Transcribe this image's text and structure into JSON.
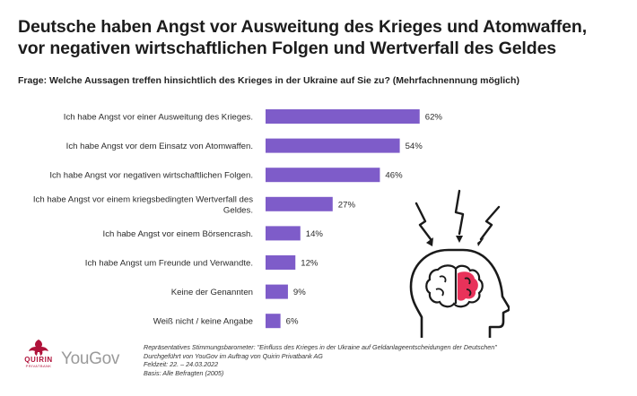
{
  "title_line1": "Deutsche haben Angst vor Ausweitung des Krieges und Atomwaffen,",
  "title_line2": "vor negativen wirtschaftlichen Folgen und Wertverfall des Geldes",
  "question": "Frage: Welche Aussagen treffen hinsichtlich des Krieges in der Ukraine auf Sie zu? (Mehrfachnennung möglich)",
  "colors": {
    "bar": "#7e5cc9",
    "accent": "#e8325a",
    "brand_quirin": "#b0123a"
  },
  "chart_data": {
    "type": "bar",
    "orientation": "horizontal",
    "categories": [
      [
        "Ich habe Angst vor einer Ausweitung des Krieges."
      ],
      [
        "Ich habe Angst vor dem Einsatz von Atomwaffen."
      ],
      [
        "Ich habe Angst vor negativen wirtschaftlichen Folgen."
      ],
      [
        "Ich habe Angst vor einem kriegsbedingten Wertverfall des",
        "Geldes."
      ],
      [
        "Ich habe Angst vor einem Börsencrash."
      ],
      [
        "Ich habe Angst um Freunde und Verwandte."
      ],
      [
        "Keine der Genannten"
      ],
      [
        "Weiß nicht / keine Angabe"
      ]
    ],
    "values": [
      62,
      54,
      46,
      27,
      14,
      12,
      9,
      6
    ],
    "value_labels": [
      "62%",
      "54%",
      "46%",
      "27%",
      "14%",
      "12%",
      "9%",
      "6%"
    ],
    "xlim": [
      0,
      100
    ],
    "grid": false,
    "legend": "none"
  },
  "logos": {
    "quirin": "QUIRIN",
    "quirin_sub": "PRIVATBANK",
    "yougov": "YouGov"
  },
  "icons": {
    "head": "brain-head-icon",
    "quirin_mark": "quirin-griffin-icon"
  },
  "notes": [
    "Repräsentatives Stimmungsbarometer: \"Einfluss des Krieges in der Ukraine auf Geldanlageentscheidungen der Deutschen\"",
    "Durchgeführt von YouGov im Auftrag von Quirin Privatbank AG",
    "Feldzeit: 22. – 24.03.2022",
    "Basis: Alle Befragten (2005)"
  ]
}
